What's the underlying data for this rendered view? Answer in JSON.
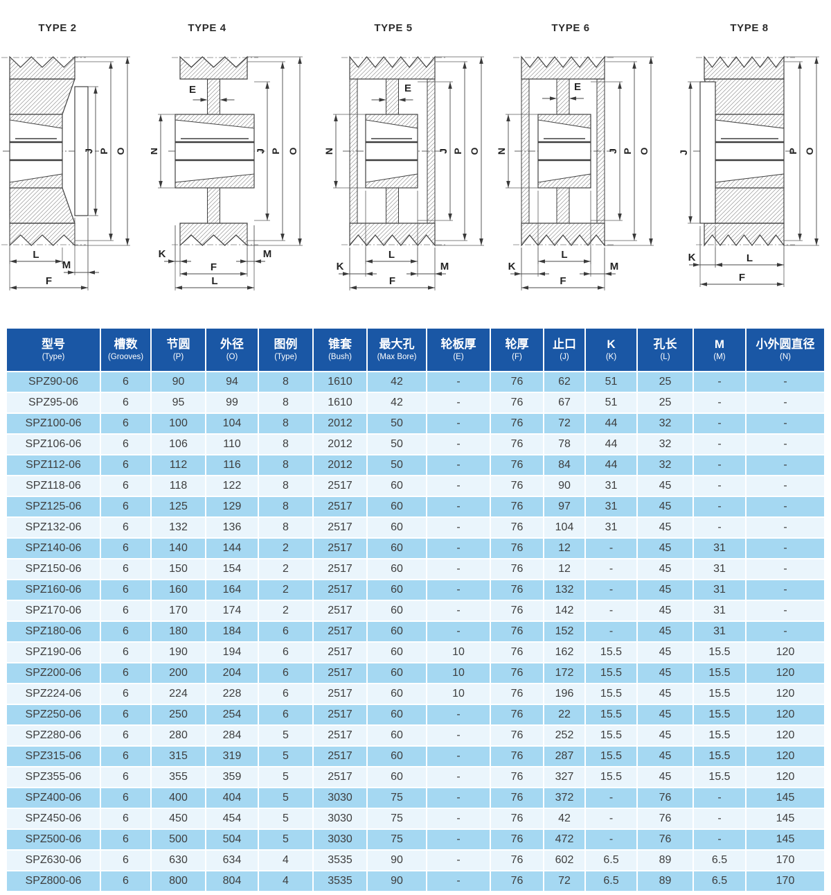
{
  "drawings": [
    {
      "title": "TYPE 2",
      "dims": [
        "J",
        "P",
        "O",
        "L",
        "M",
        "F"
      ]
    },
    {
      "title": "TYPE 4",
      "dims": [
        "J",
        "P",
        "O",
        "N",
        "E",
        "K",
        "M",
        "F",
        "L"
      ]
    },
    {
      "title": "TYPE 5",
      "dims": [
        "J",
        "P",
        "O",
        "N",
        "E",
        "L",
        "K",
        "M",
        "F"
      ]
    },
    {
      "title": "TYPE 6",
      "dims": [
        "J",
        "P",
        "O",
        "N",
        "E",
        "L",
        "K",
        "M",
        "F"
      ]
    },
    {
      "title": "TYPE 8",
      "dims": [
        "J",
        "P",
        "O",
        "K",
        "L",
        "F"
      ]
    }
  ],
  "table": {
    "columns": [
      {
        "zh": "型号",
        "en": "(Type)"
      },
      {
        "zh": "槽数",
        "en": "(Grooves)"
      },
      {
        "zh": "节圆",
        "en": "(P)"
      },
      {
        "zh": "外径",
        "en": "(O)"
      },
      {
        "zh": "图例",
        "en": "(Type)"
      },
      {
        "zh": "锥套",
        "en": "(Bush)"
      },
      {
        "zh": "最大孔",
        "en": "(Max Bore)"
      },
      {
        "zh": "轮板厚",
        "en": "(E)"
      },
      {
        "zh": "轮厚",
        "en": "(F)"
      },
      {
        "zh": "止口",
        "en": "(J)"
      },
      {
        "zh": "K",
        "en": "(K)"
      },
      {
        "zh": "孔长",
        "en": "(L)"
      },
      {
        "zh": "M",
        "en": "(M)"
      },
      {
        "zh": "小外圆直径",
        "en": "(N)"
      }
    ],
    "rows": [
      [
        "SPZ90-06",
        "6",
        "90",
        "94",
        "8",
        "1610",
        "42",
        "-",
        "76",
        "62",
        "51",
        "25",
        "-",
        "-"
      ],
      [
        "SPZ95-06",
        "6",
        "95",
        "99",
        "8",
        "1610",
        "42",
        "-",
        "76",
        "67",
        "51",
        "25",
        "-",
        "-"
      ],
      [
        "SPZ100-06",
        "6",
        "100",
        "104",
        "8",
        "2012",
        "50",
        "-",
        "76",
        "72",
        "44",
        "32",
        "-",
        "-"
      ],
      [
        "SPZ106-06",
        "6",
        "106",
        "110",
        "8",
        "2012",
        "50",
        "-",
        "76",
        "78",
        "44",
        "32",
        "-",
        "-"
      ],
      [
        "SPZ112-06",
        "6",
        "112",
        "116",
        "8",
        "2012",
        "50",
        "-",
        "76",
        "84",
        "44",
        "32",
        "-",
        "-"
      ],
      [
        "SPZ118-06",
        "6",
        "118",
        "122",
        "8",
        "2517",
        "60",
        "-",
        "76",
        "90",
        "31",
        "45",
        "-",
        "-"
      ],
      [
        "SPZ125-06",
        "6",
        "125",
        "129",
        "8",
        "2517",
        "60",
        "-",
        "76",
        "97",
        "31",
        "45",
        "-",
        "-"
      ],
      [
        "SPZ132-06",
        "6",
        "132",
        "136",
        "8",
        "2517",
        "60",
        "-",
        "76",
        "104",
        "31",
        "45",
        "-",
        "-"
      ],
      [
        "SPZ140-06",
        "6",
        "140",
        "144",
        "2",
        "2517",
        "60",
        "-",
        "76",
        "12",
        "-",
        "45",
        "31",
        "-"
      ],
      [
        "SPZ150-06",
        "6",
        "150",
        "154",
        "2",
        "2517",
        "60",
        "-",
        "76",
        "12",
        "-",
        "45",
        "31",
        "-"
      ],
      [
        "SPZ160-06",
        "6",
        "160",
        "164",
        "2",
        "2517",
        "60",
        "-",
        "76",
        "132",
        "-",
        "45",
        "31",
        "-"
      ],
      [
        "SPZ170-06",
        "6",
        "170",
        "174",
        "2",
        "2517",
        "60",
        "-",
        "76",
        "142",
        "-",
        "45",
        "31",
        "-"
      ],
      [
        "SPZ180-06",
        "6",
        "180",
        "184",
        "6",
        "2517",
        "60",
        "-",
        "76",
        "152",
        "-",
        "45",
        "31",
        "-"
      ],
      [
        "SPZ190-06",
        "6",
        "190",
        "194",
        "6",
        "2517",
        "60",
        "10",
        "76",
        "162",
        "15.5",
        "45",
        "15.5",
        "120"
      ],
      [
        "SPZ200-06",
        "6",
        "200",
        "204",
        "6",
        "2517",
        "60",
        "10",
        "76",
        "172",
        "15.5",
        "45",
        "15.5",
        "120"
      ],
      [
        "SPZ224-06",
        "6",
        "224",
        "228",
        "6",
        "2517",
        "60",
        "10",
        "76",
        "196",
        "15.5",
        "45",
        "15.5",
        "120"
      ],
      [
        "SPZ250-06",
        "6",
        "250",
        "254",
        "6",
        "2517",
        "60",
        "-",
        "76",
        "22",
        "15.5",
        "45",
        "15.5",
        "120"
      ],
      [
        "SPZ280-06",
        "6",
        "280",
        "284",
        "5",
        "2517",
        "60",
        "-",
        "76",
        "252",
        "15.5",
        "45",
        "15.5",
        "120"
      ],
      [
        "SPZ315-06",
        "6",
        "315",
        "319",
        "5",
        "2517",
        "60",
        "-",
        "76",
        "287",
        "15.5",
        "45",
        "15.5",
        "120"
      ],
      [
        "SPZ355-06",
        "6",
        "355",
        "359",
        "5",
        "2517",
        "60",
        "-",
        "76",
        "327",
        "15.5",
        "45",
        "15.5",
        "120"
      ],
      [
        "SPZ400-06",
        "6",
        "400",
        "404",
        "5",
        "3030",
        "75",
        "-",
        "76",
        "372",
        "-",
        "76",
        "-",
        "145"
      ],
      [
        "SPZ450-06",
        "6",
        "450",
        "454",
        "5",
        "3030",
        "75",
        "-",
        "76",
        "42",
        "-",
        "76",
        "-",
        "145"
      ],
      [
        "SPZ500-06",
        "6",
        "500",
        "504",
        "5",
        "3030",
        "75",
        "-",
        "76",
        "472",
        "-",
        "76",
        "-",
        "145"
      ],
      [
        "SPZ630-06",
        "6",
        "630",
        "634",
        "4",
        "3535",
        "90",
        "-",
        "76",
        "602",
        "6.5",
        "89",
        "6.5",
        "170"
      ],
      [
        "SPZ800-06",
        "6",
        "800",
        "804",
        "4",
        "3535",
        "90",
        "-",
        "76",
        "72",
        "6.5",
        "89",
        "6.5",
        "170"
      ]
    ]
  },
  "colors": {
    "header_bg": "#1a57a5",
    "header_text": "#ffffff",
    "row_odd": "#a5d8f2",
    "row_even": "#eaf5fc",
    "cell_text": "#3d3d3d",
    "line": "#3f3f3f"
  }
}
